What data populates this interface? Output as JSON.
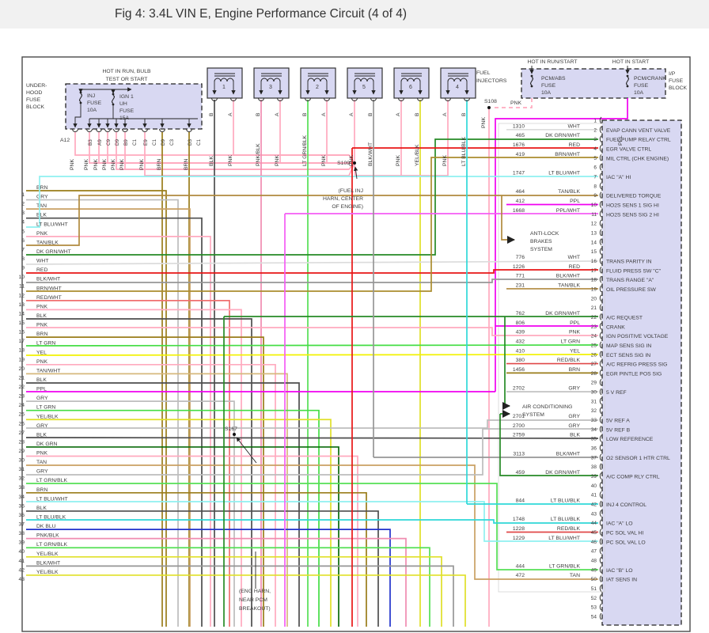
{
  "title": "Fig 4: 3.4L VIN E, Engine Performance Circuit (4 of 4)",
  "palette": {
    "PNK": "#ffaabf",
    "PNK/BLK": "#f08cb0",
    "BLK": "#4d4d4d",
    "BLK/WHT": "#969696",
    "WHT": "#dcdcdc",
    "GRY": "#bdbdbd",
    "BRN": "#9a7d1a",
    "BRN/WHT": "#ab8d2e",
    "TAN": "#c9a063",
    "TAN/BLK": "#b08a3e",
    "TAN/WHT": "#d6b87c",
    "RED": "#e81616",
    "RED/BLK": "#e04848",
    "RED/WHT": "#f07070",
    "PPL": "#f000f0",
    "PPL/WHT": "#f55cf5",
    "LT GRN": "#44dd44",
    "LT GRN/BLK": "#55e055",
    "DK GRN": "#0b6b0b",
    "DK GRN/WHT": "#268a26",
    "YEL": "#f2f200",
    "YEL/BLK": "#e0e028",
    "LT BLU/WHT": "#8ff0f0",
    "LT BLU/BLK": "#2ed8d8",
    "DK BLU": "#2233cc"
  },
  "header": {
    "hot_in_run_bulb": [
      "HOT IN RUN, BULB",
      "TEST OR START"
    ],
    "hot_in_run_start": "HOT IN RUN/START",
    "hot_in_start": "HOT IN START"
  },
  "underhood": {
    "label_lines": [
      "UNDER-",
      "HOOD",
      "FUSE",
      "BLOCK"
    ],
    "connector_id": "A12",
    "a12_wire": "PNK",
    "fuses": [
      {
        "lines": [
          "INJ",
          "FUSE",
          "10A"
        ]
      },
      {
        "lines": [
          "IGN 1",
          "UH",
          "FUSE",
          "15A"
        ]
      }
    ],
    "pins": [
      {
        "id": "B3",
        "wire": "PNK"
      },
      {
        "id": "A9",
        "wire": "PNK"
      },
      {
        "id": "C9",
        "wire": "PNK"
      },
      {
        "id": "D9",
        "wire": "PNK"
      },
      {
        "id": "B9",
        "wire": "PNK"
      },
      {
        "id": "C1",
        "wire": ""
      },
      {
        "id": "E9",
        "wire": "PNK"
      },
      {
        "id": "C1",
        "wire": ""
      },
      {
        "id": "D9",
        "wire": "BRN"
      },
      {
        "id": "C3",
        "wire": ""
      },
      {
        "id": "D3",
        "wire": "BRN"
      },
      {
        "id": "C1",
        "wire": ""
      }
    ]
  },
  "ip_block": {
    "label_lines": [
      "I/P",
      "FUSE",
      "BLOCK"
    ],
    "fuses": [
      {
        "lines": [
          "PCM/ABS",
          "FUSE",
          "10A"
        ]
      },
      {
        "lines": [
          "PCM/CRANK",
          "FUSE",
          "10A"
        ]
      }
    ],
    "pnk_label": "PNK",
    "pnk_vert_label": "PNK",
    "ppl_label": "PPL"
  },
  "injectors": {
    "label_lines": [
      "FUEL",
      "INJECTORS"
    ],
    "items": [
      {
        "num": "1",
        "pins": [
          {
            "letter": "B",
            "color": "BLK"
          },
          {
            "letter": "A",
            "color": "PNK"
          }
        ]
      },
      {
        "num": "3",
        "pins": [
          {
            "letter": "B",
            "color": "PNK/BLK"
          },
          {
            "letter": "A",
            "color": "PNK"
          }
        ]
      },
      {
        "num": "2",
        "pins": [
          {
            "letter": "B",
            "color": "LT GRN/BLK"
          },
          {
            "letter": "A",
            "color": "PNK"
          }
        ]
      },
      {
        "num": "5",
        "pins": [
          {
            "letter": "A",
            "color": "PNK"
          },
          {
            "letter": "B",
            "color": "BLK/WHT"
          }
        ]
      },
      {
        "num": "6",
        "pins": [
          {
            "letter": "A",
            "color": "PNK"
          },
          {
            "letter": "B",
            "color": "YEL/BLK"
          }
        ]
      },
      {
        "num": "4",
        "pins": [
          {
            "letter": "A",
            "color": "PNK"
          },
          {
            "letter": "B",
            "color": "LT BLU/BLK"
          }
        ]
      }
    ]
  },
  "splices": {
    "s108": "S108",
    "s109": "S109",
    "s167": "S167"
  },
  "notes": {
    "fuel_inj": [
      "(FUEL INJ",
      "HARN, CENTER",
      "OF ENGINE)"
    ],
    "eng_harn": [
      "(ENG HARN,",
      "NEAR PCM",
      "BREAKOUT)"
    ],
    "abs": [
      "ANTI-LOCK",
      "BRAKES",
      "SYSTEM"
    ],
    "ac": [
      "AIR CONDITIONING",
      "SYSTEM"
    ]
  },
  "left_wires": [
    {
      "num": 1,
      "color": "BRN"
    },
    {
      "num": 2,
      "color": "GRY"
    },
    {
      "num": 3,
      "color": "TAN"
    },
    {
      "num": 4,
      "color": "BLK"
    },
    {
      "num": 5,
      "color": "LT BLU/WHT"
    },
    {
      "num": 6,
      "color": "PNK"
    },
    {
      "num": 7,
      "color": "TAN/BLK"
    },
    {
      "num": 8,
      "color": "DK GRN/WHT"
    },
    {
      "num": 9,
      "color": "WHT"
    },
    {
      "num": 10,
      "color": "RED"
    },
    {
      "num": 11,
      "color": "BLK/WHT"
    },
    {
      "num": 12,
      "color": "BRN/WHT"
    },
    {
      "num": 13,
      "color": "RED/WHT"
    },
    {
      "num": 14,
      "color": "PNK"
    },
    {
      "num": 15,
      "color": "BLK"
    },
    {
      "num": 16,
      "color": "PNK"
    },
    {
      "num": 17,
      "color": "BRN"
    },
    {
      "num": 18,
      "color": "LT GRN"
    },
    {
      "num": 19,
      "color": "YEL"
    },
    {
      "num": 20,
      "color": "PNK"
    },
    {
      "num": 21,
      "color": "TAN/WHT"
    },
    {
      "num": 22,
      "color": "BLK"
    },
    {
      "num": 23,
      "color": "PPL"
    },
    {
      "num": 24,
      "color": "GRY"
    },
    {
      "num": 25,
      "color": "LT GRN"
    },
    {
      "num": 26,
      "color": "YEL/BLK"
    },
    {
      "num": 27,
      "color": "GRY"
    },
    {
      "num": 28,
      "color": "BLK"
    },
    {
      "num": 29,
      "color": "DK GRN"
    },
    {
      "num": 30,
      "color": "PNK"
    },
    {
      "num": 31,
      "color": "TAN"
    },
    {
      "num": 32,
      "color": "GRY"
    },
    {
      "num": 33,
      "color": "LT GRN/BLK"
    },
    {
      "num": 34,
      "color": "BRN"
    },
    {
      "num": 35,
      "color": "LT BLU/WHT"
    },
    {
      "num": 36,
      "color": "BLK"
    },
    {
      "num": 37,
      "color": "LT BLU/BLK"
    },
    {
      "num": 38,
      "color": "DK BLU"
    },
    {
      "num": 39,
      "color": "PNK/BLK"
    },
    {
      "num": 40,
      "color": "LT GRN/BLK"
    },
    {
      "num": 41,
      "color": "YEL/BLK"
    },
    {
      "num": 42,
      "color": "BLK/WHT"
    },
    {
      "num": 43,
      "color": "YEL/BLK"
    }
  ],
  "pcm": {
    "pin_numbers": [
      1,
      2,
      3,
      4,
      5,
      6,
      7,
      8,
      9,
      10,
      11,
      12,
      13,
      14,
      15,
      16,
      17,
      18,
      19,
      20,
      21,
      22,
      23,
      24,
      25,
      26,
      27,
      28,
      29,
      30,
      31,
      32,
      33,
      34,
      35,
      36,
      37,
      38,
      39,
      40,
      41,
      42,
      43,
      44,
      45,
      46,
      47,
      48,
      49,
      50,
      51,
      52,
      53,
      54
    ],
    "rows": [
      {
        "pin": 2,
        "circuit": "1310",
        "color": "WHT",
        "label": "EVAP CANN VENT VALVE"
      },
      {
        "pin": 3,
        "circuit": "465",
        "color": "DK GRN/WHT",
        "label": "FUEL PUMP RELAY CTRL"
      },
      {
        "pin": 4,
        "circuit": "1676",
        "color": "RED",
        "label": "EGR VALVE CTRL"
      },
      {
        "pin": 5,
        "circuit": "419",
        "color": "BRN/WHT",
        "label": "MIL CTRL (CHK ENGINE)"
      },
      {
        "pin": 7,
        "circuit": "1747",
        "color": "LT BLU/WHT",
        "label": "IAC \"A\" HI"
      },
      {
        "pin": 9,
        "circuit": "464",
        "color": "TAN/BLK",
        "label": "DELIVERED TORQUE"
      },
      {
        "pin": 10,
        "circuit": "412",
        "color": "PPL",
        "label": "HO2S SENS 1 SIG HI"
      },
      {
        "pin": 11,
        "circuit": "1668",
        "color": "PPL/WHT",
        "label": "HO2S SENS SIG 2 HI"
      },
      {
        "pin": 16,
        "circuit": "776",
        "color": "WHT",
        "label": "TRANS PARITY IN"
      },
      {
        "pin": 17,
        "circuit": "1226",
        "color": "RED",
        "label": "FLUID PRESS SW \"C\""
      },
      {
        "pin": 18,
        "circuit": "771",
        "color": "BLK/WHT",
        "label": "TRANS RANGE \"A\""
      },
      {
        "pin": 19,
        "circuit": "231",
        "color": "TAN/BLK",
        "label": "OIL PRESSURE SW"
      },
      {
        "pin": 22,
        "circuit": "762",
        "color": "DK GRN/WHT",
        "label": "A/C REQUEST"
      },
      {
        "pin": 23,
        "circuit": "806",
        "color": "PPL",
        "label": "CRANK"
      },
      {
        "pin": 24,
        "circuit": "439",
        "color": "PNK",
        "label": "IGN POSITIVE VOLTAGE"
      },
      {
        "pin": 25,
        "circuit": "432",
        "color": "LT GRN",
        "label": "MAP SENS SIG IN"
      },
      {
        "pin": 26,
        "circuit": "410",
        "color": "YEL",
        "label": "ECT SENS SIG IN"
      },
      {
        "pin": 27,
        "circuit": "380",
        "color": "RED/BLK",
        "label": "A/C REFRIG PRESS SIG"
      },
      {
        "pin": 28,
        "circuit": "1456",
        "color": "BRN",
        "label": "EGR PINTLE POS SIG"
      },
      {
        "pin": 30,
        "circuit": "2702",
        "color": "GRY",
        "label": "5 V REF"
      },
      {
        "pin": 33,
        "circuit": "2701",
        "color": "GRY",
        "label": "5V REF A"
      },
      {
        "pin": 34,
        "circuit": "2700",
        "color": "GRY",
        "label": "5V REF B"
      },
      {
        "pin": 35,
        "circuit": "2759",
        "color": "BLK",
        "label": "LOW REFERENCE"
      },
      {
        "pin": 37,
        "circuit": "3113",
        "color": "BLK/WHT",
        "label": "O2 SENSOR 1 HTR CTRL"
      },
      {
        "pin": 39,
        "circuit": "459",
        "color": "DK GRN/WHT",
        "label": "A/C COMP RLY CTRL"
      },
      {
        "pin": 42,
        "circuit": "844",
        "color": "LT BLU/BLK",
        "label": "INJ 4 CONTROL"
      },
      {
        "pin": 44,
        "circuit": "1748",
        "color": "LT BLU/BLK",
        "label": "IAC \"A\" LO"
      },
      {
        "pin": 45,
        "circuit": "1228",
        "color": "RED/BLK",
        "label": "PC SOL VAL HI"
      },
      {
        "pin": 46,
        "circuit": "1229",
        "color": "LT BLU/WHT",
        "label": "PC SOL VAL LO"
      },
      {
        "pin": 49,
        "circuit": "444",
        "color": "LT GRN/BLK",
        "label": "IAC \"B\" LO"
      },
      {
        "pin": 50,
        "circuit": "472",
        "color": "TAN",
        "label": "IAT SENS IN"
      }
    ]
  }
}
